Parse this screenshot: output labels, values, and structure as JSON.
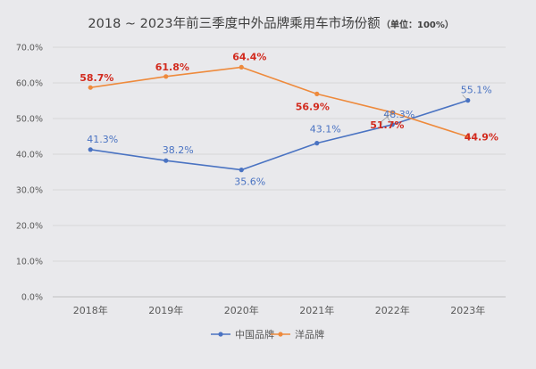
{
  "chart_data": {
    "type": "line",
    "title": "2018 ~ 2023年前三季度中外品牌乘用车市场份额",
    "subtitle": "（单位：100%）",
    "categories": [
      "2018年",
      "2019年",
      "2020年",
      "2021年",
      "2022年",
      "2023年"
    ],
    "series": [
      {
        "name": "中国品牌",
        "color": "#4a73c2",
        "label_color": "#4a73c2",
        "values": [
          41.3,
          38.2,
          35.6,
          43.1,
          48.3,
          55.1
        ],
        "labels": [
          "41.3%",
          "38.2%",
          "35.6%",
          "43.1%",
          "48.3%",
          "55.1%"
        ]
      },
      {
        "name": "洋品牌",
        "color": "#ee8a3c",
        "label_color": "#d22a1e",
        "values": [
          58.7,
          61.8,
          64.4,
          56.9,
          51.7,
          44.9
        ],
        "labels": [
          "58.7%",
          "61.8%",
          "64.4%",
          "56.9%",
          "51.7%",
          "44.9%"
        ]
      }
    ],
    "ylim": [
      0,
      70
    ],
    "yticks": [
      "0.0%",
      "10.0%",
      "20.0%",
      "30.0%",
      "40.0%",
      "50.0%",
      "60.0%",
      "70.0%"
    ],
    "ytick_values": [
      0,
      10,
      20,
      30,
      40,
      50,
      60,
      70
    ],
    "xlabel": "",
    "ylabel": "",
    "grid": true,
    "legend_position": "bottom-center"
  }
}
